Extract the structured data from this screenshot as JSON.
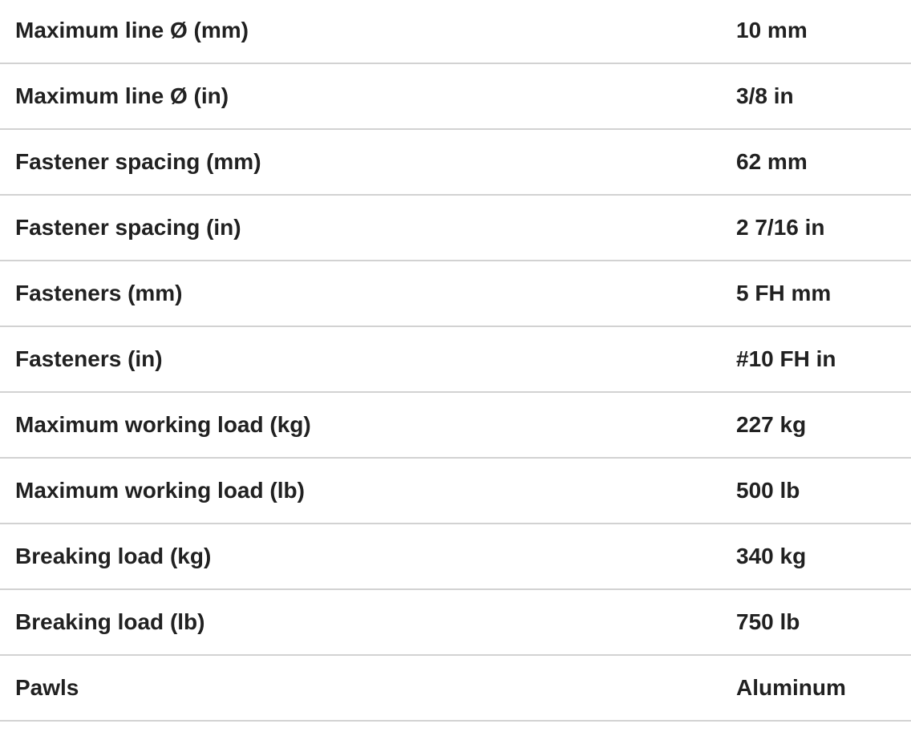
{
  "specs": [
    {
      "label": "Maximum line Ø (mm)",
      "value": "10 mm"
    },
    {
      "label": "Maximum line Ø (in)",
      "value": "3/8 in"
    },
    {
      "label": "Fastener spacing (mm)",
      "value": "62 mm"
    },
    {
      "label": "Fastener spacing (in)",
      "value": "2 7/16 in"
    },
    {
      "label": "Fasteners (mm)",
      "value": "5 FH mm"
    },
    {
      "label": "Fasteners (in)",
      "value": "#10 FH in"
    },
    {
      "label": "Maximum working load (kg)",
      "value": "227 kg"
    },
    {
      "label": "Maximum working load (lb)",
      "value": "500 lb"
    },
    {
      "label": "Breaking load (kg)",
      "value": "340 kg"
    },
    {
      "label": "Breaking load (lb)",
      "value": "750 lb"
    },
    {
      "label": "Pawls",
      "value": "Aluminum"
    }
  ]
}
